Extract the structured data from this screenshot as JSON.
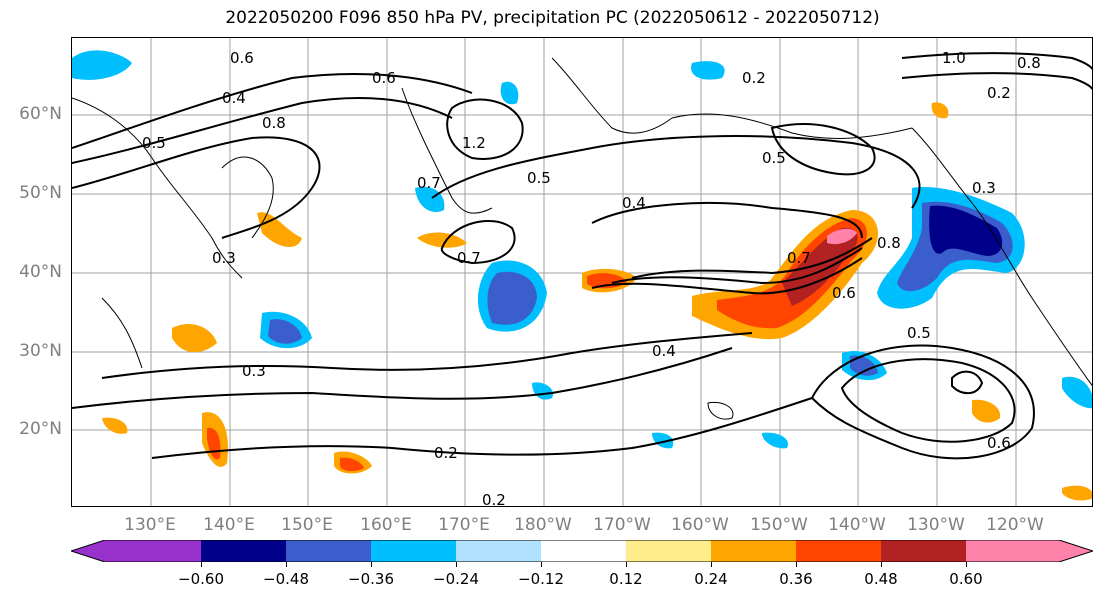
{
  "title": "2022050200 F096 850 hPa PV, precipitation PC (2022050612 - 2022050712)",
  "lat_labels": [
    "60°N",
    "50°N",
    "40°N",
    "30°N",
    "20°N"
  ],
  "lon_labels": [
    "130°E",
    "140°E",
    "150°E",
    "160°E",
    "170°E",
    "180°W",
    "170°W",
    "160°W",
    "150°W",
    "140°W",
    "130°W",
    "120°W"
  ],
  "colorbar": {
    "colors": [
      "#9932cc",
      "#00008b",
      "#3a5fcd",
      "#00bfff",
      "#b0e2ff",
      "#ffffff",
      "#ffec8b",
      "#ffa500",
      "#ff4500",
      "#b22222",
      "#ff82ab"
    ],
    "ticks": [
      "−0.60",
      "−0.48",
      "−0.36",
      "−0.24",
      "−0.12",
      "0.12",
      "0.24",
      "0.36",
      "0.48",
      "0.60"
    ]
  },
  "contour_labels": [
    "0.6",
    "0.4",
    "0.5",
    "0.6",
    "0.8",
    "1.2",
    "0.2",
    "0.5",
    "0.4",
    "0.3",
    "0.7",
    "0.5",
    "0.7",
    "0.7",
    "0.8",
    "0.6",
    "0.5",
    "0.4",
    "0.3",
    "0.2",
    "0.2",
    "1.0",
    "0.8",
    "0.3",
    "0.6",
    "0.2"
  ]
}
